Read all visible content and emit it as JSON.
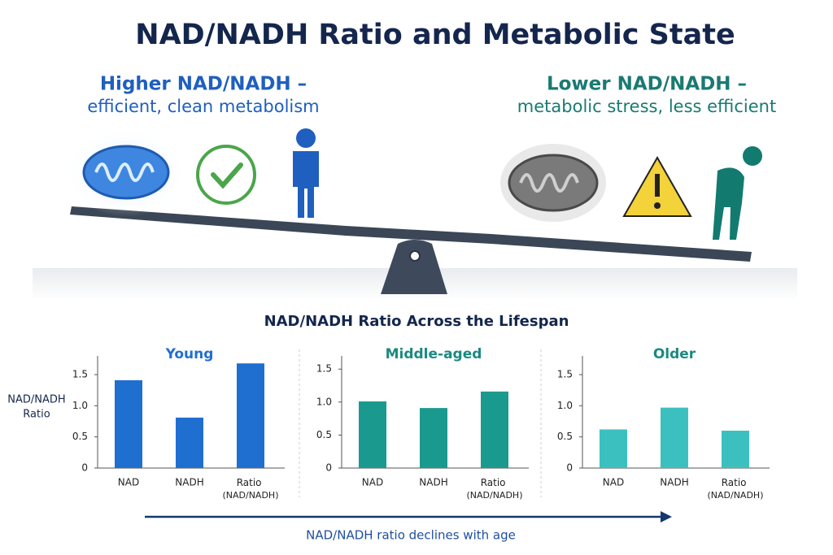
{
  "title": "NAD/NADH Ratio and Metabolic State",
  "left_heading": {
    "line1": "Higher NAD/NADH –",
    "line2": "efficient, clean metabolism"
  },
  "right_heading": {
    "line1": "Lower NAD/NADH –",
    "line2": "metabolic stress, less efficient"
  },
  "section_title": "NAD/NADH Ratio Across the Lifespan",
  "y_axis_label": {
    "line1": "NAD/NADH",
    "line2": "Ratio"
  },
  "footer": "NAD/NADH ratio declines with age",
  "chart_data": [
    {
      "type": "bar",
      "title": "Young",
      "categories": [
        "NAD",
        "NADH",
        "Ratio (NAD/NADH)"
      ],
      "values": [
        1.41,
        0.81,
        1.68
      ],
      "color": "#1f6fd1",
      "title_color": "#1f6fd1",
      "ylim": [
        0,
        1.8
      ],
      "yticks": [
        0,
        0.5,
        {
          "value": 1,
          "label": "1.0"
        },
        1.5
      ]
    },
    {
      "type": "bar",
      "title": "Middle-aged",
      "categories": [
        "NAD",
        "NADH",
        "Ratio (NAD/NADH)"
      ],
      "values": [
        1.01,
        0.91,
        1.16
      ],
      "color": "#1a9a8e",
      "title_color": "#1a8a80",
      "ylim": [
        0,
        1.7
      ],
      "yticks": [
        0,
        0.5,
        {
          "value": 1,
          "label": "1.0"
        },
        1.5
      ]
    },
    {
      "type": "bar",
      "title": "Older",
      "categories": [
        "NAD",
        "NADH",
        "Ratio (NAD/NADH)"
      ],
      "values": [
        0.62,
        0.97,
        0.6
      ],
      "color": "#3cc0bf",
      "title_color": "#1a8a80",
      "ylim": [
        0,
        1.8
      ],
      "yticks": [
        0,
        0.5,
        {
          "value": 1,
          "label": "1.0"
        },
        1.5
      ]
    }
  ]
}
